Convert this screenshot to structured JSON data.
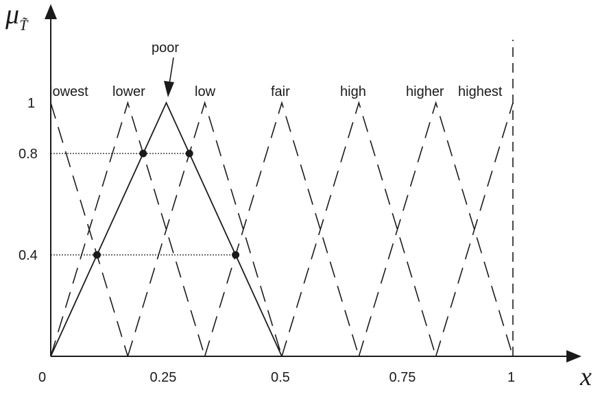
{
  "chart_data": {
    "type": "line",
    "y_axis_label": "μ",
    "y_axis_sub": "T̃",
    "x_axis_label": "x",
    "x_ticks": [
      {
        "value": 0,
        "label": "0"
      },
      {
        "value": 0.25,
        "label": "0.25"
      },
      {
        "value": 0.5,
        "label": "0.5"
      },
      {
        "value": 0.75,
        "label": "0.75"
      },
      {
        "value": 1,
        "label": "1"
      }
    ],
    "y_ticks": [
      {
        "value": 1,
        "label": "1"
      },
      {
        "value": 0.8,
        "label": "0.8"
      },
      {
        "value": 0.4,
        "label": "0.4"
      }
    ],
    "xlim": [
      0,
      1
    ],
    "ylim": [
      0,
      1
    ],
    "terms": [
      {
        "name": "lowest",
        "points": [
          [
            0,
            1
          ],
          [
            0.1667,
            0
          ]
        ]
      },
      {
        "name": "lower",
        "points": [
          [
            0,
            0
          ],
          [
            0.1667,
            1
          ],
          [
            0.3333,
            0
          ]
        ]
      },
      {
        "name": "low",
        "points": [
          [
            0.1667,
            0
          ],
          [
            0.3333,
            1
          ],
          [
            0.5,
            0
          ]
        ]
      },
      {
        "name": "fair",
        "points": [
          [
            0.3333,
            0
          ],
          [
            0.5,
            1
          ],
          [
            0.6667,
            0
          ]
        ]
      },
      {
        "name": "high",
        "points": [
          [
            0.5,
            0
          ],
          [
            0.6667,
            1
          ],
          [
            0.8333,
            0
          ]
        ]
      },
      {
        "name": "higher",
        "points": [
          [
            0.6667,
            0
          ],
          [
            0.8333,
            1
          ],
          [
            1,
            0
          ]
        ]
      },
      {
        "name": "highest",
        "points": [
          [
            0.8333,
            0
          ],
          [
            1,
            1
          ]
        ]
      }
    ],
    "highlighted_term": {
      "name": "poor",
      "points": [
        [
          0,
          0
        ],
        [
          0.25,
          1
        ],
        [
          0.5,
          0
        ]
      ]
    },
    "alpha_cuts": [
      {
        "level": 0.8,
        "points": [
          0.2,
          0.3
        ]
      },
      {
        "level": 0.4,
        "points": [
          0.1,
          0.4
        ]
      }
    ],
    "reference_line_x": 1
  }
}
